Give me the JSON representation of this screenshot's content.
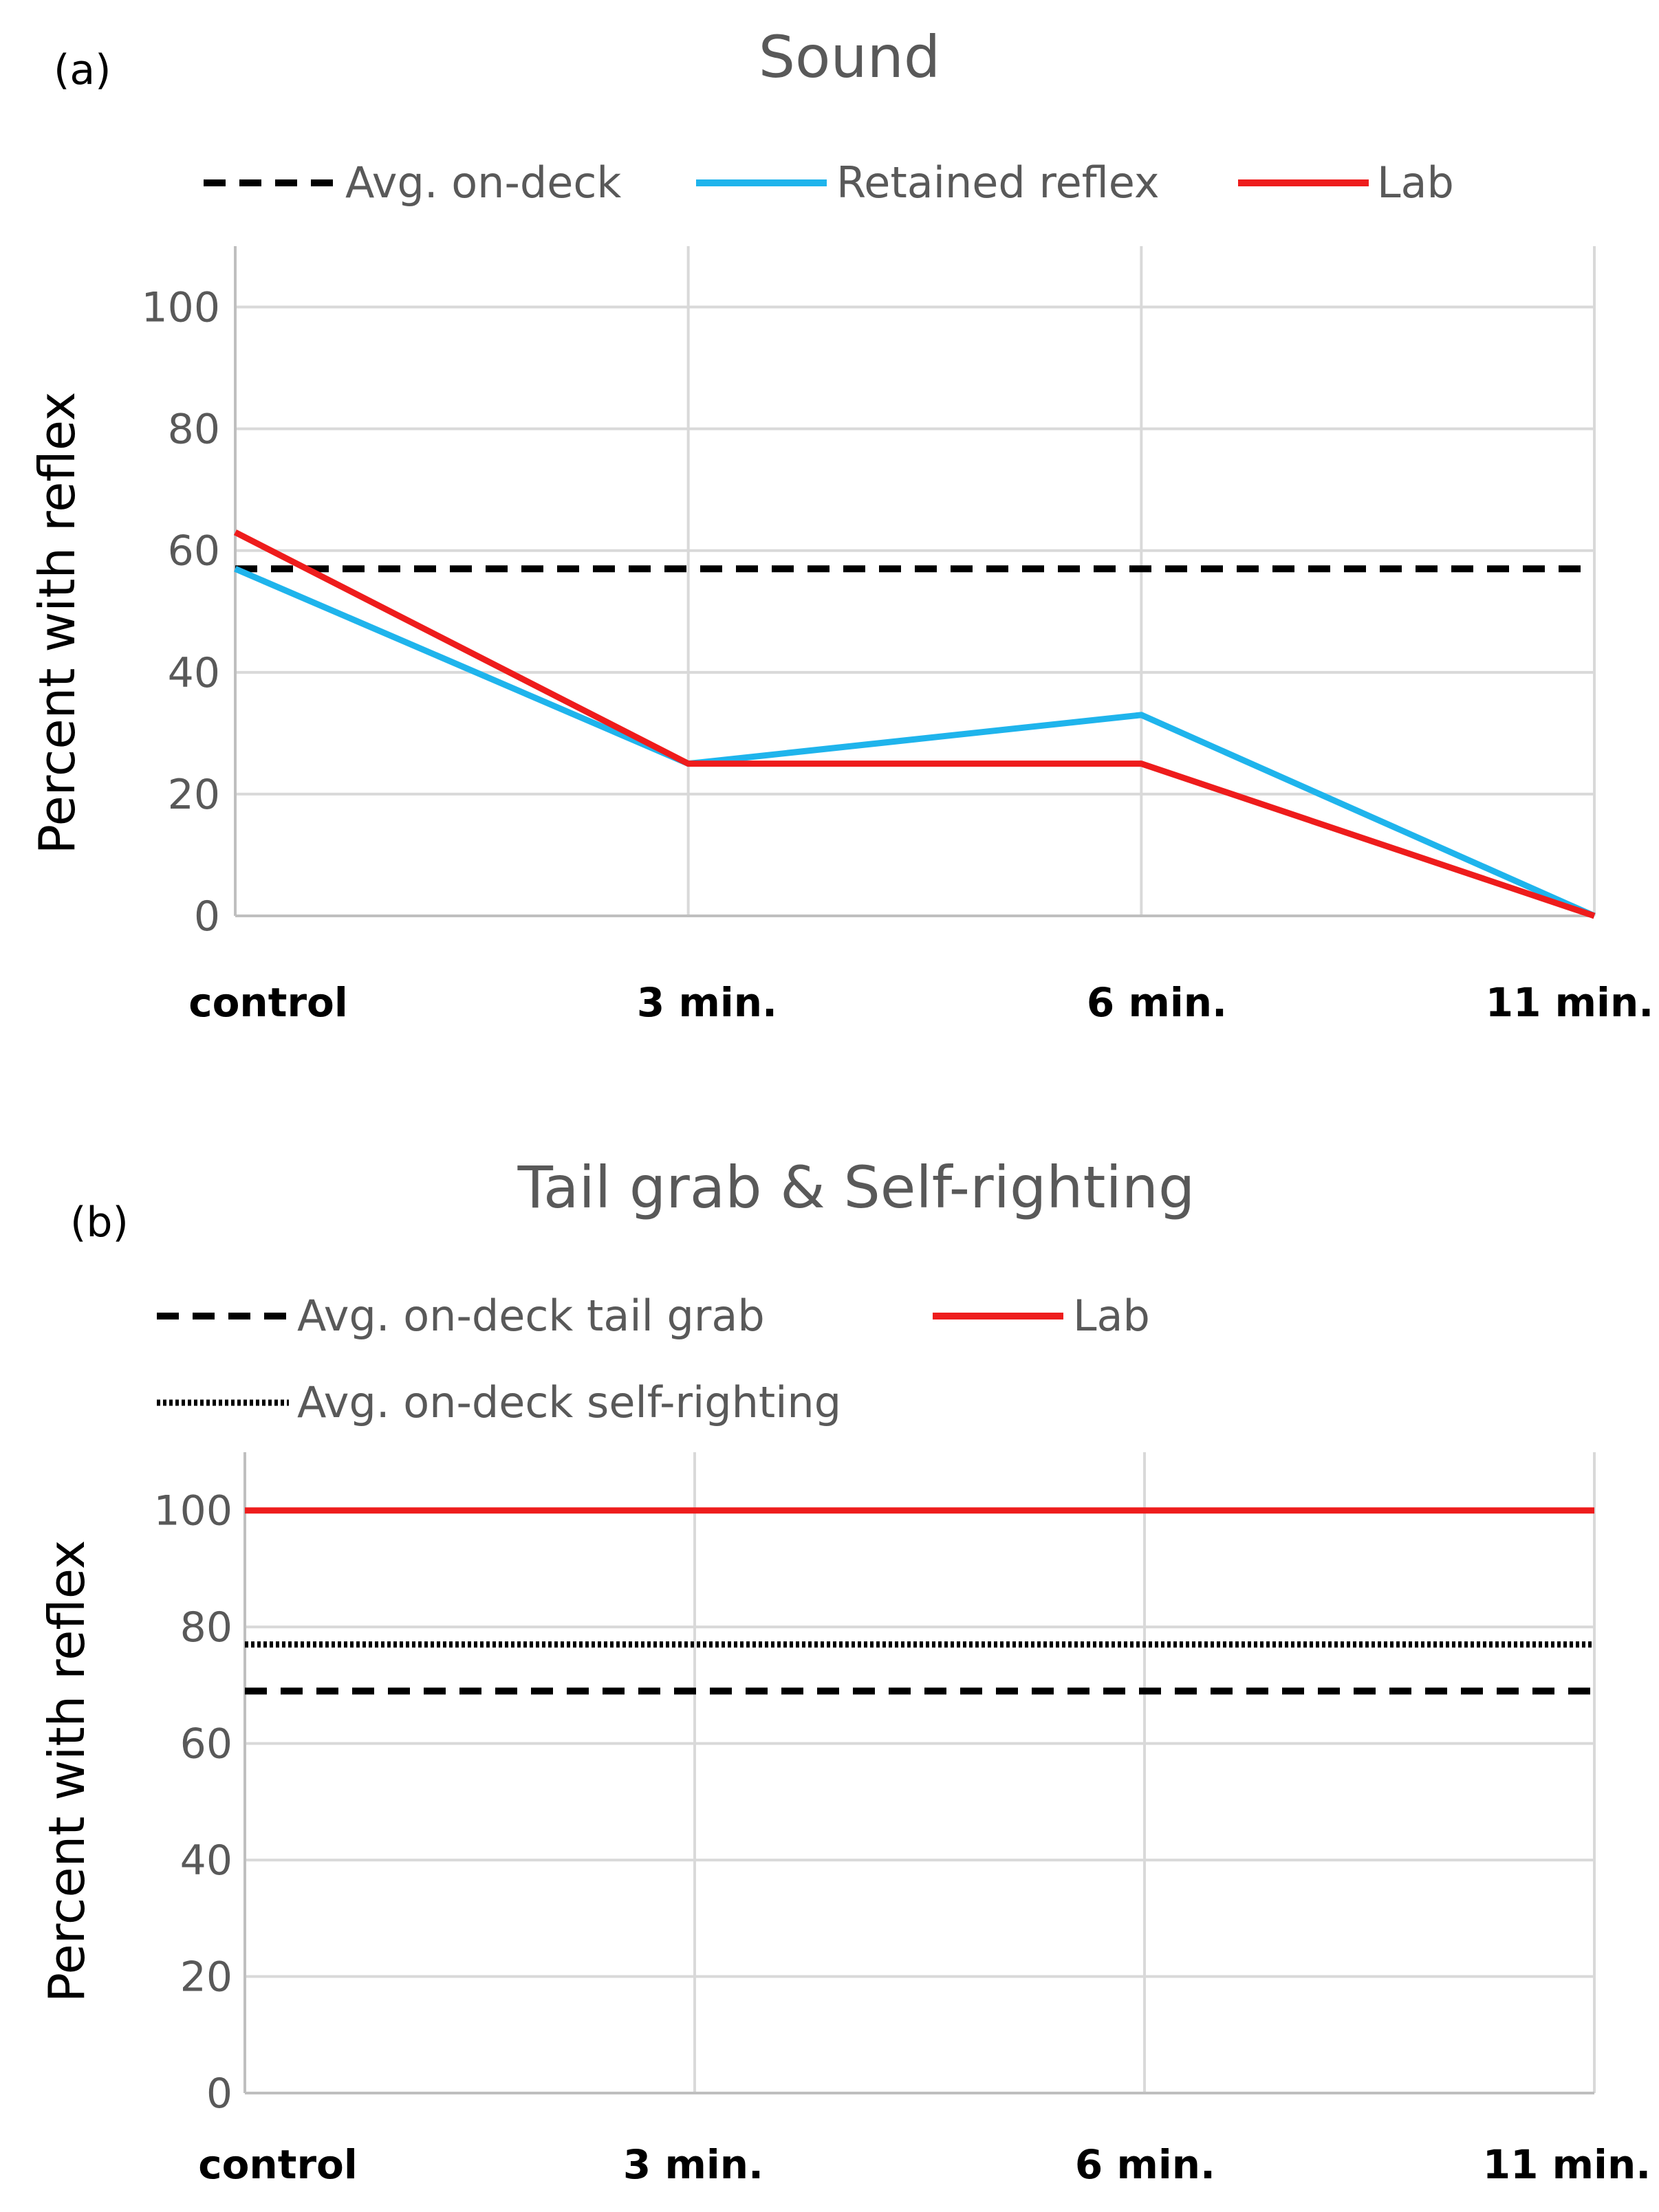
{
  "chart_data": [
    {
      "type": "line",
      "panel_label": "(a)",
      "title": "Sound",
      "xlabel": "",
      "ylabel": "Percent with reflex",
      "categories": [
        "control",
        "3 min.",
        "6 min.",
        "11 min."
      ],
      "ylim": [
        0,
        110
      ],
      "yticks": [
        "0",
        "20",
        "40",
        "60",
        "80",
        "100"
      ],
      "grid": true,
      "legend_position": "top",
      "series": [
        {
          "name": "Avg. on-deck",
          "style": "dashed",
          "color": "#000000",
          "values": [
            57,
            57,
            57,
            57
          ]
        },
        {
          "name": "Retained reflex",
          "style": "solid",
          "color": "#1fb4ec",
          "values": [
            57,
            25,
            33,
            0
          ]
        },
        {
          "name": "Lab",
          "style": "solid",
          "color": "#ee1c1c",
          "values": [
            63,
            25,
            25,
            0
          ]
        }
      ]
    },
    {
      "type": "line",
      "panel_label": "(b)",
      "title": "Tail grab & Self-righting",
      "xlabel": "",
      "ylabel": "Percent with reflex",
      "categories": [
        "control",
        "3 min.",
        "6 min.",
        "11 min."
      ],
      "ylim": [
        0,
        110
      ],
      "yticks": [
        "0",
        "20",
        "40",
        "60",
        "80",
        "100"
      ],
      "grid": true,
      "legend_position": "top",
      "series": [
        {
          "name": "Avg. on-deck tail grab",
          "style": "dashed",
          "color": "#000000",
          "values": [
            69,
            69,
            69,
            69
          ]
        },
        {
          "name": "Lab",
          "style": "solid",
          "color": "#ee1c1c",
          "values": [
            100,
            100,
            100,
            100
          ]
        },
        {
          "name": "Avg. on-deck self-righting",
          "style": "dotted",
          "color": "#000000",
          "values": [
            77,
            77,
            77,
            77
          ]
        }
      ]
    }
  ]
}
